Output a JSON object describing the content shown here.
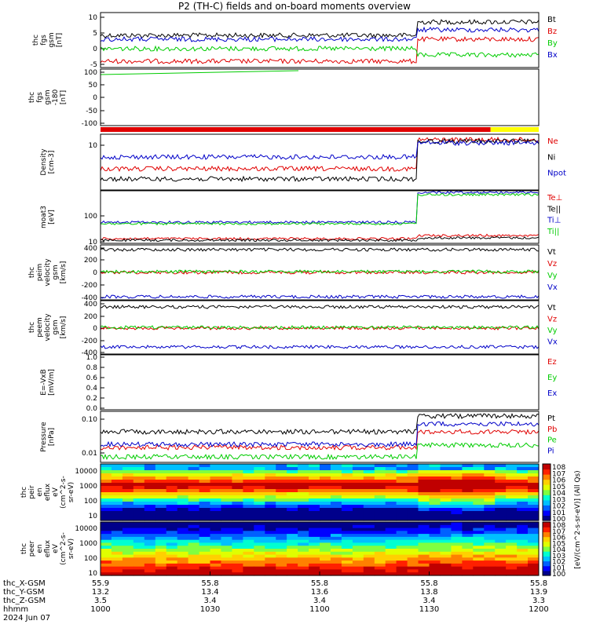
{
  "title": "P2 (TH-C) fields and on-board moments overview",
  "colors": {
    "black": "#000000",
    "red": "#e00000",
    "green": "#00cc00",
    "blue": "#0000c8",
    "yellow": "#ffff00"
  },
  "chart_data": [
    {
      "type": "line",
      "id": "fgs",
      "ylabel": [
        "thc",
        "fgs",
        "gsm",
        "[nT]"
      ],
      "ylim": [
        -5,
        12
      ],
      "yticks": [
        "10",
        "5",
        "0",
        "-5"
      ],
      "series": [
        {
          "name": "Bt",
          "color": "black"
        },
        {
          "name": "Bz",
          "color": "red"
        },
        {
          "name": "By",
          "color": "green"
        },
        {
          "name": "Bx",
          "color": "blue"
        }
      ]
    },
    {
      "type": "line",
      "id": "fgs_angle",
      "ylabel": [
        "thc",
        "fgs",
        "gsm",
        "-180",
        "[nT]"
      ],
      "ylim": [
        -130,
        110
      ],
      "yticks": [
        "100",
        "50",
        "0",
        "-50",
        "-100"
      ],
      "series": []
    },
    {
      "type": "bar",
      "id": "mode_bar",
      "colors": [
        "red",
        "yellow"
      ],
      "split_time": "11:51"
    },
    {
      "type": "line",
      "id": "density",
      "ylabel": [
        "Density",
        "[cm-3]"
      ],
      "scale": "log",
      "yticks": [
        "10"
      ],
      "series": [
        {
          "name": "Ne",
          "color": "red"
        },
        {
          "name": "Ni",
          "color": "black"
        },
        {
          "name": "Npot",
          "color": "blue"
        }
      ]
    },
    {
      "type": "line",
      "id": "temperature",
      "ylabel": [
        "moat3",
        "[eV]"
      ],
      "scale": "log",
      "yticks": [
        "100",
        "10"
      ],
      "series": [
        {
          "name": "Te⊥",
          "color": "red"
        },
        {
          "name": "Te||",
          "color": "black"
        },
        {
          "name": "Ti⊥",
          "color": "blue"
        },
        {
          "name": "Ti||",
          "color": "green"
        }
      ]
    },
    {
      "type": "line",
      "id": "peim_vel",
      "ylabel": [
        "thc",
        "peim",
        "velocity",
        "gsm",
        "[km/s]"
      ],
      "yticks": [
        "400",
        "200",
        "0",
        "-200",
        "-400"
      ],
      "series": [
        {
          "name": "Vt",
          "color": "black"
        },
        {
          "name": "Vz",
          "color": "red"
        },
        {
          "name": "Vy",
          "color": "green"
        },
        {
          "name": "Vx",
          "color": "blue"
        }
      ]
    },
    {
      "type": "line",
      "id": "peem_vel",
      "ylabel": [
        "thc",
        "peem",
        "velocity",
        "gsm",
        "[km/s]"
      ],
      "yticks": [
        "400",
        "200",
        "0",
        "-200",
        "-400"
      ],
      "series": [
        {
          "name": "Vt",
          "color": "black"
        },
        {
          "name": "Vz",
          "color": "red"
        },
        {
          "name": "Vy",
          "color": "green"
        },
        {
          "name": "Vx",
          "color": "blue"
        }
      ]
    },
    {
      "type": "line",
      "id": "efield",
      "ylabel": [
        "E=-VxB",
        "[mV/m]"
      ],
      "yticks": [
        "1.0",
        "0.8",
        "0.6",
        "0.4",
        "0.2",
        "0.0"
      ],
      "series": [
        {
          "name": "Ez",
          "color": "red"
        },
        {
          "name": "Ey",
          "color": "green"
        },
        {
          "name": "Ex",
          "color": "blue"
        }
      ]
    },
    {
      "type": "line",
      "id": "pressure",
      "ylabel": [
        "Pressure",
        "[nPa]"
      ],
      "scale": "log",
      "yticks": [
        "0.10",
        "0.01"
      ],
      "series": [
        {
          "name": "Pt",
          "color": "black"
        },
        {
          "name": "Pb",
          "color": "red"
        },
        {
          "name": "Pe",
          "color": "green"
        },
        {
          "name": "Pi",
          "color": "blue"
        }
      ]
    },
    {
      "type": "heatmap",
      "id": "peir",
      "ylabel": [
        "thc",
        "peir",
        "en",
        "eflux",
        "eV",
        "(cm^2-s-",
        "sr-eV)"
      ],
      "yticks": [
        "10000",
        "1000",
        "100",
        "10"
      ]
    },
    {
      "type": "heatmap",
      "id": "peer",
      "ylabel": [
        "thc",
        "peer",
        "en",
        "eflux",
        "eV",
        "(cm^2-s-",
        "sr-eV)"
      ],
      "yticks": [
        "10000",
        "1000",
        "100",
        "10"
      ]
    }
  ],
  "colorbar": {
    "label": "[eV/(cm^2-s-sr-eV)] (All Qs)",
    "ticks": [
      "10^8",
      "10^7",
      "10^6",
      "10^5",
      "10^4",
      "10^3",
      "10^2",
      "10^1",
      "10^0"
    ],
    "ticks2": [
      "10^8",
      "10^7",
      "10^6",
      "10^5",
      "10^4",
      "10^3",
      "10^2",
      "10^1",
      "10^0"
    ]
  },
  "x_axis": {
    "row_labels": [
      "thc_X-GSM",
      "thc_Y-GSM",
      "thc_Z-GSM",
      "hhmm",
      "2024 Jun 07"
    ],
    "columns": [
      {
        "x": "55.9",
        "y": "13.2",
        "z": "3.5",
        "hhmm": "1000"
      },
      {
        "x": "55.8",
        "y": "13.4",
        "z": "3.4",
        "hhmm": "1030"
      },
      {
        "x": "55.8",
        "y": "13.6",
        "z": "3.4",
        "hhmm": "1100"
      },
      {
        "x": "55.8",
        "y": "13.8",
        "z": "3.4",
        "hhmm": "1130"
      },
      {
        "x": "55.8",
        "y": "13.9",
        "z": "3.3",
        "hhmm": "1200"
      }
    ]
  }
}
